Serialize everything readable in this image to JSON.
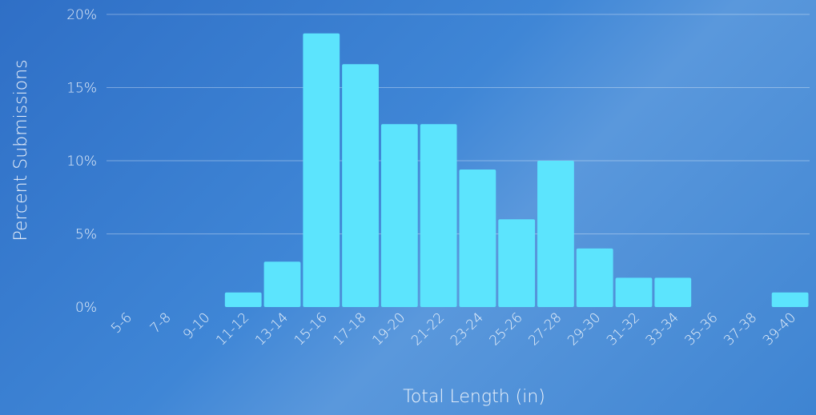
{
  "chart_data": {
    "type": "bar",
    "title": "",
    "xlabel": "Total Length (in)",
    "ylabel": "Percent Submissions",
    "ylim": [
      0,
      20
    ],
    "yticks": [
      "0%",
      "5%",
      "10%",
      "15%",
      "20%"
    ],
    "grid": true,
    "bar_color": "#5ce4fd",
    "categories": [
      "5-6",
      "7-8",
      "9-10",
      "11-12",
      "13-14",
      "15-16",
      "17-18",
      "19-20",
      "21-22",
      "23-24",
      "25-26",
      "27-28",
      "29-30",
      "31-32",
      "33-34",
      "35-36",
      "37-38",
      "39-40"
    ],
    "values": [
      0,
      0,
      0,
      1,
      3.1,
      18.7,
      16.6,
      12.5,
      12.5,
      9.4,
      6.0,
      10.0,
      4.0,
      2.0,
      2.0,
      0,
      0,
      1.0
    ]
  }
}
